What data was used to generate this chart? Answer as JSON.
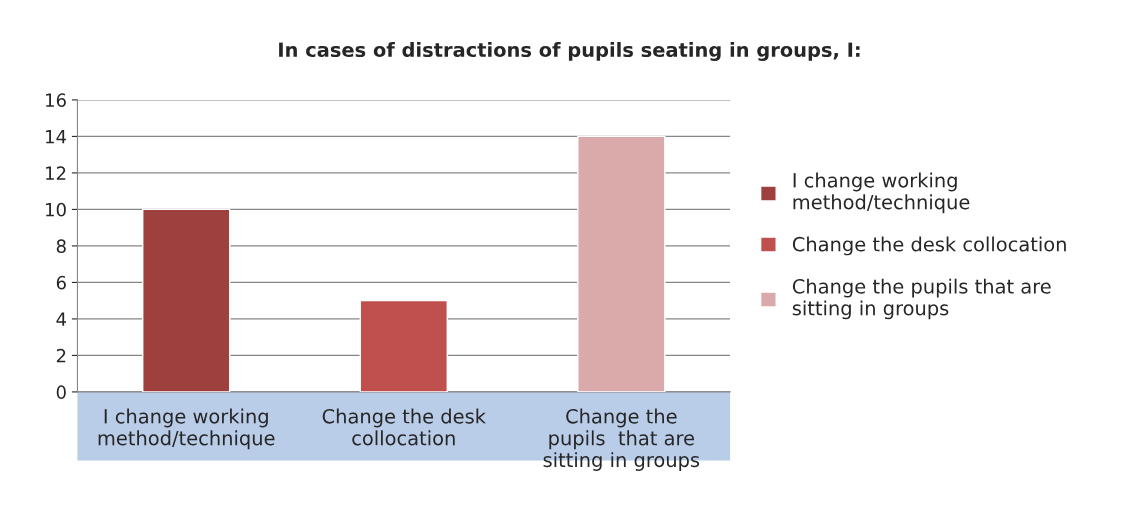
{
  "chart_data": {
    "type": "bar",
    "title": "In cases of distractions of pupils seating in groups, I:",
    "categories": [
      "I change working\nmethod/technique",
      "Change the desk\ncollocation",
      "Change the\npupils  that are\nsitting in groups"
    ],
    "series": [
      {
        "name": "I change working\nmethod/technique",
        "color": "#9d403e",
        "values": [
          10,
          null,
          null
        ]
      },
      {
        "name": "Change the desk collocation",
        "color": "#c0504d",
        "values": [
          null,
          5,
          null
        ]
      },
      {
        "name": "Change the pupils that are\nsitting in groups",
        "color": "#d9aaa9",
        "values": [
          null,
          null,
          14
        ]
      }
    ],
    "ylim": [
      0,
      16
    ],
    "yticks": [
      0,
      2,
      4,
      6,
      8,
      10,
      12,
      14,
      16
    ],
    "grid": "y",
    "legend": "right"
  }
}
